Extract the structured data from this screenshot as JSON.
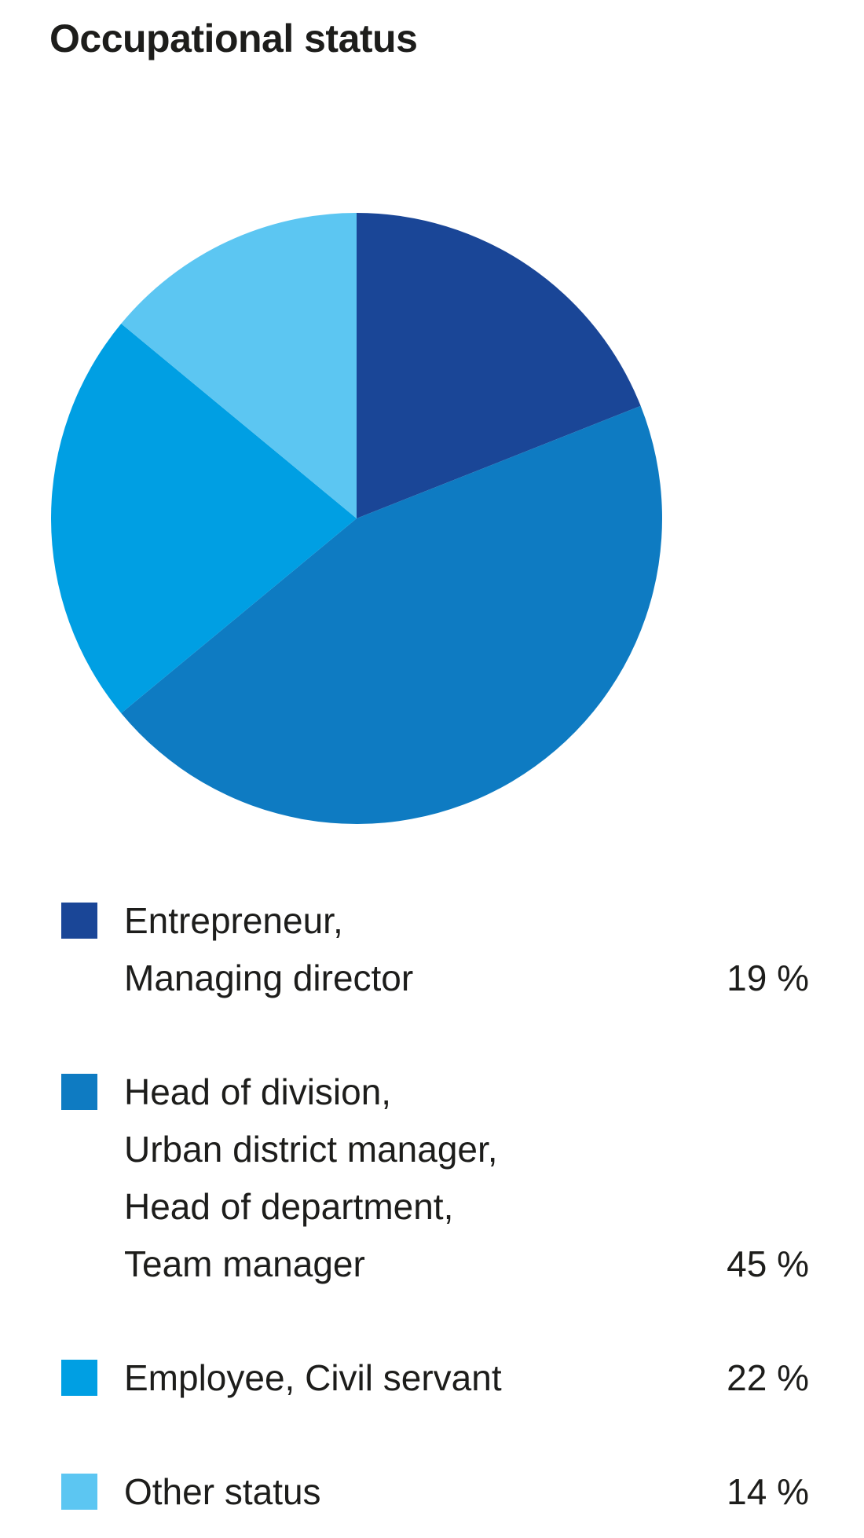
{
  "title": "Occupational status",
  "colors": {
    "dark_blue": "#1A4697",
    "medium_blue": "#0E7BC2",
    "bright_blue": "#009FE3",
    "light_blue": "#5CC6F2",
    "text": "#1D1D1B",
    "background": "#FFFFFF"
  },
  "chart_data": {
    "type": "pie",
    "title": "Occupational status",
    "categories": [
      "Entrepreneur, Managing director",
      "Head of division, Urban district manager, Head of department, Team manager",
      "Employee, Civil servant",
      "Other status"
    ],
    "values": [
      19,
      45,
      22,
      14
    ],
    "unit": "%",
    "slice_colors": [
      "#1A4697",
      "#0E7BC2",
      "#009FE3",
      "#5CC6F2"
    ],
    "start_angle_deg": 0,
    "direction": "clockwise",
    "legend_position": "bottom-left",
    "data_labels": false
  },
  "legend": {
    "items": [
      {
        "label_lines": [
          "Entrepreneur,",
          "Managing director"
        ],
        "value": "19 %",
        "color": "#1A4697",
        "swatch_name": "dark-blue-swatch"
      },
      {
        "label_lines": [
          "Head of division,",
          "Urban district manager,",
          "Head of department,",
          "Team manager"
        ],
        "value": "45 %",
        "color": "#0E7BC2",
        "swatch_name": "medium-blue-swatch"
      },
      {
        "label_lines": [
          "Employee, Civil servant"
        ],
        "value": "22 %",
        "color": "#009FE3",
        "swatch_name": "bright-blue-swatch"
      },
      {
        "label_lines": [
          "Other status"
        ],
        "value": "14 %",
        "color": "#5CC6F2",
        "swatch_name": "light-blue-swatch"
      }
    ]
  }
}
